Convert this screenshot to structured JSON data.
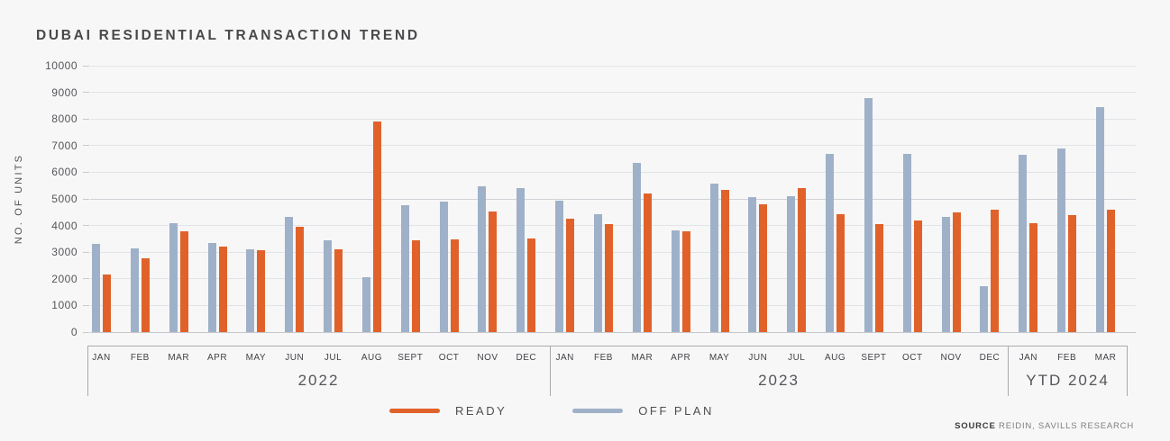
{
  "title": "DUBAI RESIDENTIAL TRANSACTION TREND",
  "y_axis_title": "NO. OF UNITS",
  "legend": {
    "items": [
      {
        "label": "READY",
        "color": "#e0622a"
      },
      {
        "label": "OFF PLAN",
        "color": "#9fb1c8"
      }
    ]
  },
  "source": {
    "prefix": "SOURCE",
    "text": " REIDIN, SAVILLS RESEARCH"
  },
  "colors": {
    "ready": "#e0622a",
    "off_plan": "#9fb1c8",
    "background": "#f7f7f7",
    "gridline": "#e3e4e9",
    "axis_line": "#c6c7cc",
    "bracket": "#a9aaae"
  },
  "chart_data": {
    "type": "bar",
    "title": "DUBAI RESIDENTIAL TRANSACTION TREND",
    "xlabel": "",
    "ylabel": "NO. OF UNITS",
    "ylim": [
      0,
      10000
    ],
    "y_ticks": [
      0,
      1000,
      2000,
      3000,
      4000,
      5000,
      6000,
      7000,
      8000,
      9000,
      10000
    ],
    "grid": true,
    "legend_position": "bottom",
    "groups": [
      {
        "label": "2022",
        "months": [
          "JAN",
          "FEB",
          "MAR",
          "APR",
          "MAY",
          "JUN",
          "JUL",
          "AUG",
          "SEPT",
          "OCT",
          "NOV",
          "DEC"
        ]
      },
      {
        "label": "2023",
        "months": [
          "JAN",
          "FEB",
          "MAR",
          "APR",
          "MAY",
          "JUN",
          "JUL",
          "AUG",
          "SEPT",
          "OCT",
          "NOV",
          "DEC"
        ]
      },
      {
        "label": "YTD 2024",
        "months": [
          "JAN",
          "FEB",
          "MAR"
        ]
      }
    ],
    "categories": [
      "JAN",
      "FEB",
      "MAR",
      "APR",
      "MAY",
      "JUN",
      "JUL",
      "AUG",
      "SEPT",
      "OCT",
      "NOV",
      "DEC",
      "JAN",
      "FEB",
      "MAR",
      "APR",
      "MAY",
      "JUN",
      "JUL",
      "AUG",
      "SEPT",
      "OCT",
      "NOV",
      "DEC",
      "JAN",
      "FEB",
      "MAR"
    ],
    "series": [
      {
        "name": "OFF PLAN",
        "color": "#9fb1c8",
        "values": [
          3300,
          3150,
          4080,
          3340,
          3110,
          4330,
          3450,
          2070,
          4780,
          4900,
          5480,
          5390,
          4930,
          4420,
          6360,
          3830,
          5560,
          5060,
          5090,
          6700,
          8800,
          6680,
          4320,
          1730,
          6650,
          6900,
          8450
        ]
      },
      {
        "name": "READY",
        "color": "#e0622a",
        "values": [
          2150,
          2780,
          3800,
          3210,
          3070,
          3970,
          3100,
          7890,
          3430,
          3480,
          4520,
          3520,
          4260,
          4060,
          5200,
          3780,
          5330,
          4790,
          5390,
          4430,
          4060,
          4190,
          4500,
          4580,
          4080,
          4400,
          4600
        ]
      }
    ]
  }
}
